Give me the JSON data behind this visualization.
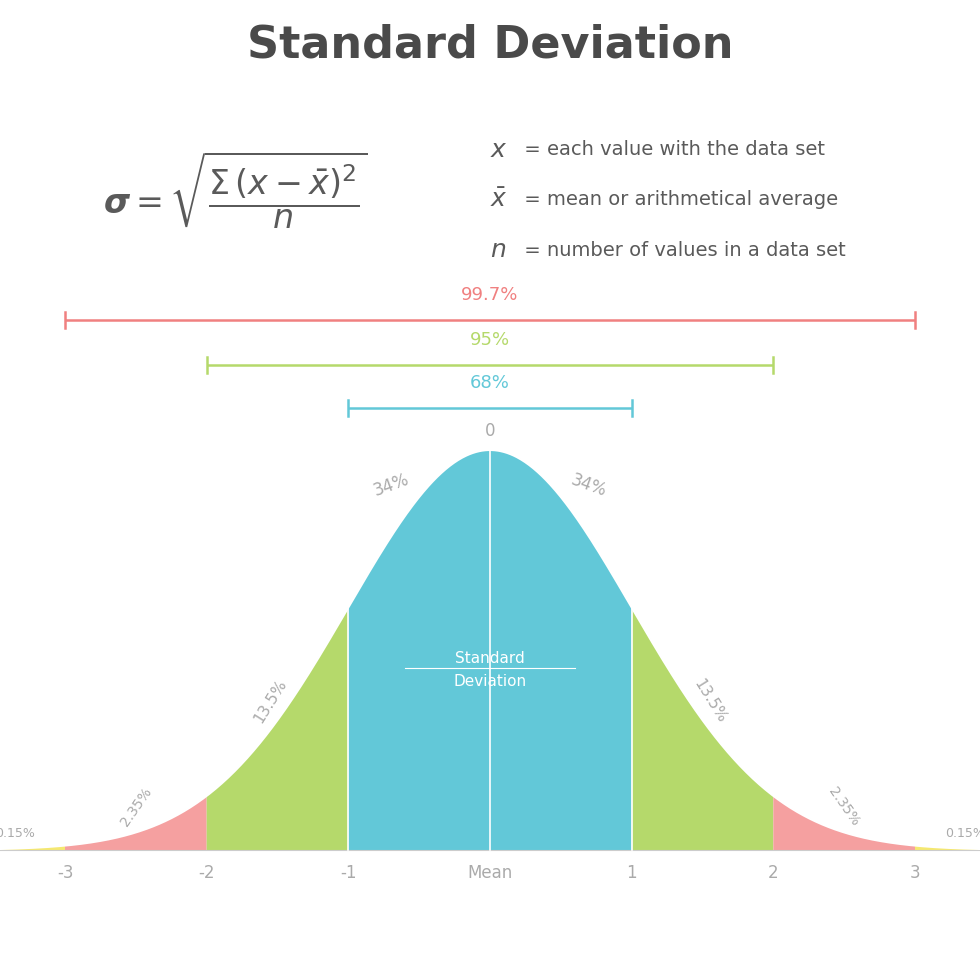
{
  "title": "Standard Deviation",
  "title_color": "#4a4a4a",
  "background_color": "#ffffff",
  "formula_color": "#5a5a5a",
  "segment_colors": {
    "below_neg3": "#f5e870",
    "neg3_to_neg2": "#f5a0a0",
    "neg2_to_neg1": "#b5d96b",
    "neg1_to_0": "#62c8d8",
    "0_to_1": "#62c8d8",
    "1_to_2": "#b5d96b",
    "2_to_3": "#f5a0a0",
    "above_3": "#f5e870"
  },
  "tick_labels": [
    "-3",
    "-2",
    "-1",
    "Mean",
    "1",
    "2",
    "3"
  ],
  "sigma_ticks": [
    -3,
    -2,
    -1,
    0,
    1,
    2,
    3
  ],
  "bracket_997": {
    "label": "99.7%",
    "color": "#f08080",
    "xmin": -3,
    "xmax": 3
  },
  "bracket_95": {
    "label": "95%",
    "color": "#b5d96b",
    "xmin": -2,
    "xmax": 2
  },
  "bracket_68": {
    "label": "68%",
    "color": "#62c8d8",
    "xmin": -1,
    "xmax": 1
  },
  "center_label": "Standard\nDeviation",
  "center_label_color": "#ffffff",
  "label_color": "#aaaaaa"
}
